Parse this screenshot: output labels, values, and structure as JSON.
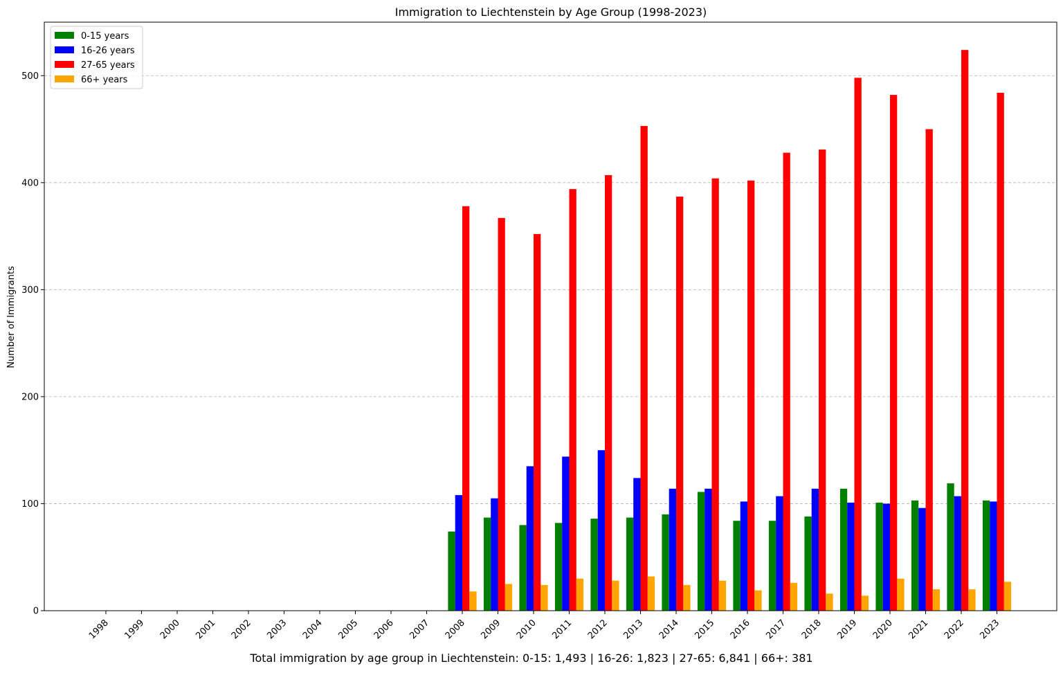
{
  "chart_data": {
    "type": "bar",
    "title": "Immigration to Liechtenstein by Age Group (1998-2023)",
    "xlabel": "",
    "ylabel": "Number of Immigrants",
    "ylim": [
      0,
      550
    ],
    "yticks": [
      0,
      100,
      200,
      300,
      400,
      500
    ],
    "grid": "y-dashed",
    "legend_position": "top-left",
    "categories": [
      "1998",
      "1999",
      "2000",
      "2001",
      "2002",
      "2003",
      "2004",
      "2005",
      "2006",
      "2007",
      "2008",
      "2009",
      "2010",
      "2011",
      "2012",
      "2013",
      "2014",
      "2015",
      "2016",
      "2017",
      "2018",
      "2019",
      "2020",
      "2021",
      "2022",
      "2023"
    ],
    "series": [
      {
        "name": "0-15 years",
        "color": "#008000",
        "values": [
          0,
          0,
          0,
          0,
          0,
          0,
          0,
          0,
          0,
          0,
          74,
          87,
          80,
          82,
          86,
          87,
          90,
          111,
          84,
          84,
          88,
          114,
          101,
          103,
          119,
          103
        ]
      },
      {
        "name": "16-26 years",
        "color": "#0000ff",
        "values": [
          0,
          0,
          0,
          0,
          0,
          0,
          0,
          0,
          0,
          0,
          108,
          105,
          135,
          144,
          150,
          124,
          114,
          114,
          102,
          107,
          114,
          101,
          100,
          96,
          107,
          102
        ]
      },
      {
        "name": "27-65 years",
        "color": "#ff0000",
        "values": [
          0,
          0,
          0,
          0,
          0,
          0,
          0,
          0,
          0,
          0,
          378,
          367,
          352,
          394,
          407,
          453,
          387,
          404,
          402,
          428,
          431,
          498,
          482,
          450,
          524,
          484
        ]
      },
      {
        "name": "66+ years",
        "color": "#ffa500",
        "values": [
          0,
          0,
          0,
          0,
          0,
          0,
          0,
          0,
          0,
          0,
          18,
          25,
          24,
          30,
          28,
          32,
          24,
          28,
          19,
          26,
          16,
          14,
          30,
          20,
          20,
          27
        ]
      }
    ]
  },
  "footer_text": "Total immigration by age group in Liechtenstein: 0-15: 1,493 | 16-26: 1,823 | 27-65: 6,841 | 66+: 381"
}
